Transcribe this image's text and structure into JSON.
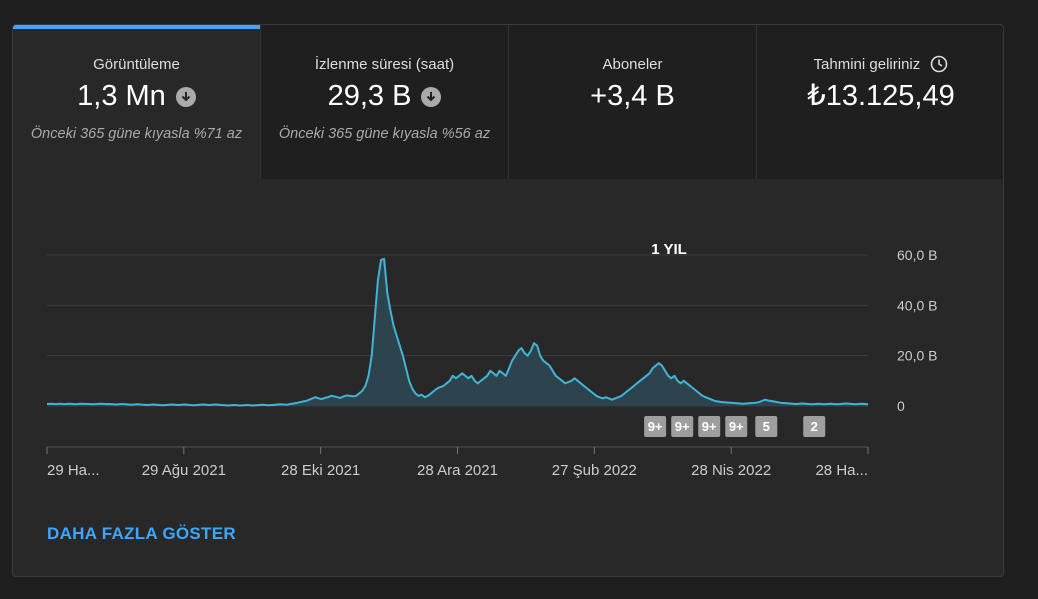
{
  "tabs": [
    {
      "label": "Görüntüleme",
      "value": "1,3 Mn",
      "compare": "Önceki 365 güne kıyasla %71 az"
    },
    {
      "label": "İzlenme süresi (saat)",
      "value": "29,3 B",
      "compare": "Önceki 365 güne kıyasla %56 az"
    },
    {
      "label": "Aboneler",
      "value": "+3,4 B",
      "compare": ""
    },
    {
      "label": "Tahmini geliriniz",
      "value": "₺13.125,49",
      "compare": ""
    }
  ],
  "chart_data": {
    "type": "area",
    "title": "1 YIL",
    "series_color": "#41b4d6",
    "x_labels": [
      "29 Ha...",
      "29 Ağu 2021",
      "28 Eki 2021",
      "28 Ara 2021",
      "27 Şub 2022",
      "28 Nis 2022",
      "28 Ha..."
    ],
    "y_ticks": [
      "60,0 B",
      "40,0 B",
      "20,0 B",
      "0"
    ],
    "ylim": [
      0,
      60000
    ],
    "start_date": "2021-06-29",
    "values": [
      800,
      900,
      850,
      700,
      900,
      800,
      750,
      900,
      850,
      700,
      800,
      900,
      850,
      800,
      750,
      700,
      800,
      900,
      850,
      750,
      800,
      700,
      600,
      700,
      800,
      700,
      600,
      500,
      600,
      700,
      600,
      500,
      400,
      500,
      600,
      500,
      400,
      300,
      400,
      500,
      600,
      500,
      400,
      500,
      600,
      500,
      400,
      300,
      400,
      500,
      600,
      500,
      400,
      500,
      600,
      500,
      400,
      300,
      200,
      300,
      400,
      300,
      200,
      300,
      400,
      300,
      200,
      300,
      400,
      500,
      400,
      300,
      400,
      500,
      600,
      700,
      600,
      500,
      800,
      1000,
      1200,
      1500,
      1800,
      2000,
      2500,
      3000,
      3500,
      3000,
      2800,
      3200,
      3500,
      4000,
      3800,
      3500,
      3200,
      3800,
      4200,
      4000,
      3800,
      4000,
      5000,
      6000,
      8000,
      12000,
      20000,
      35000,
      50000,
      58000,
      58500,
      45000,
      38000,
      32000,
      28000,
      24000,
      20000,
      15000,
      10000,
      7000,
      5000,
      4000,
      4500,
      3500,
      4000,
      5000,
      6000,
      7000,
      7500,
      8000,
      9000,
      10000,
      12000,
      11000,
      12000,
      13000,
      12000,
      11000,
      12000,
      10000,
      9000,
      10000,
      11000,
      12000,
      14000,
      13000,
      12000,
      14000,
      13000,
      12000,
      15000,
      18000,
      20000,
      22000,
      23000,
      21000,
      20000,
      22000,
      25000,
      24000,
      20000,
      18000,
      17000,
      16000,
      14000,
      12000,
      11000,
      10000,
      9000,
      9500,
      10000,
      11000,
      10000,
      9000,
      8000,
      7000,
      6000,
      5000,
      4000,
      3500,
      3000,
      3500,
      3000,
      2500,
      3000,
      3500,
      4000,
      5000,
      6000,
      7000,
      8000,
      9000,
      10000,
      11000,
      12000,
      13000,
      15000,
      16000,
      17000,
      16000,
      14000,
      12000,
      11000,
      12000,
      10000,
      9000,
      10000,
      9000,
      8000,
      7000,
      6000,
      5000,
      4000,
      3500,
      3000,
      2500,
      2000,
      1800,
      1600,
      1500,
      1400,
      1300,
      1200,
      1100,
      1000,
      900,
      1000,
      1100,
      1200,
      1300,
      1500,
      2000,
      2500,
      2200,
      2000,
      1800,
      1500,
      1300,
      1200,
      1100,
      1000,
      900,
      800,
      900,
      1000,
      900,
      800,
      700,
      800,
      900,
      800,
      700,
      800,
      900,
      800,
      700,
      800,
      900,
      1000,
      900,
      800,
      700,
      800,
      900,
      800,
      700
    ],
    "badges": [
      {
        "label": "9+",
        "x_frac": 0.7407
      },
      {
        "label": "9+",
        "x_frac": 0.7737
      },
      {
        "label": "9+",
        "x_frac": 0.8066
      },
      {
        "label": "9+",
        "x_frac": 0.8395
      },
      {
        "label": "5",
        "x_frac": 0.8761
      },
      {
        "label": "2",
        "x_frac": 0.9345
      }
    ]
  },
  "more_link": "DAHA FAZLA GÖSTER"
}
